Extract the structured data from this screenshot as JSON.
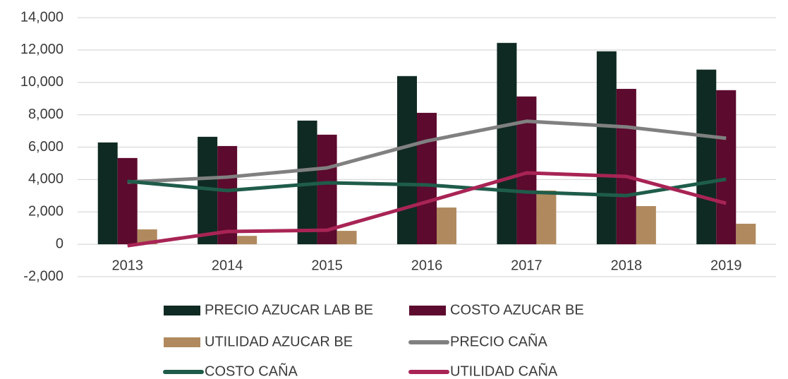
{
  "chart_data": {
    "type": "combo",
    "categories": [
      "2013",
      "2014",
      "2015",
      "2016",
      "2017",
      "2018",
      "2019"
    ],
    "ylim": [
      -2000,
      14000
    ],
    "yticks": [
      {
        "value": -2000,
        "label": "-2,000"
      },
      0,
      {
        "value": 2000,
        "label": "2,000"
      },
      {
        "value": 4000,
        "label": "4,000"
      },
      {
        "value": 6000,
        "label": "6,000"
      },
      {
        "value": 8000,
        "label": "8,000"
      },
      {
        "value": 10000,
        "label": "10,000"
      },
      {
        "value": 12000,
        "label": "12,000"
      },
      {
        "value": 14000,
        "label": "14,000"
      }
    ],
    "grid": true,
    "series": [
      {
        "name": "PRECIO AZUCAR LAB BE",
        "type": "bar",
        "color": "#0f2a22",
        "values": [
          6290,
          6640,
          7640,
          10390,
          12440,
          11920,
          10790
        ]
      },
      {
        "name": "COSTO AZUCAR BE",
        "type": "bar",
        "color": "#5c0a2e",
        "values": [
          5330,
          6070,
          6770,
          8120,
          9130,
          9600,
          9520
        ]
      },
      {
        "name": "UTILIDAD AZUCAR BE",
        "type": "bar",
        "color": "#b08a5e",
        "values": [
          920,
          520,
          830,
          2270,
          3320,
          2360,
          1270
        ]
      },
      {
        "name": "PRECIO CAÑA",
        "type": "line",
        "color": "#808080",
        "values": [
          3840,
          4150,
          4720,
          6380,
          7600,
          7250,
          6550
        ]
      },
      {
        "name": "COSTO CAÑA",
        "type": "line",
        "color": "#1f5c4a",
        "values": [
          3890,
          3320,
          3800,
          3670,
          3230,
          3010,
          4020
        ]
      },
      {
        "name": "UTILIDAD CAÑA",
        "type": "line",
        "color": "#a82455",
        "values": [
          -90,
          790,
          870,
          2620,
          4410,
          4190,
          2530
        ]
      }
    ]
  }
}
